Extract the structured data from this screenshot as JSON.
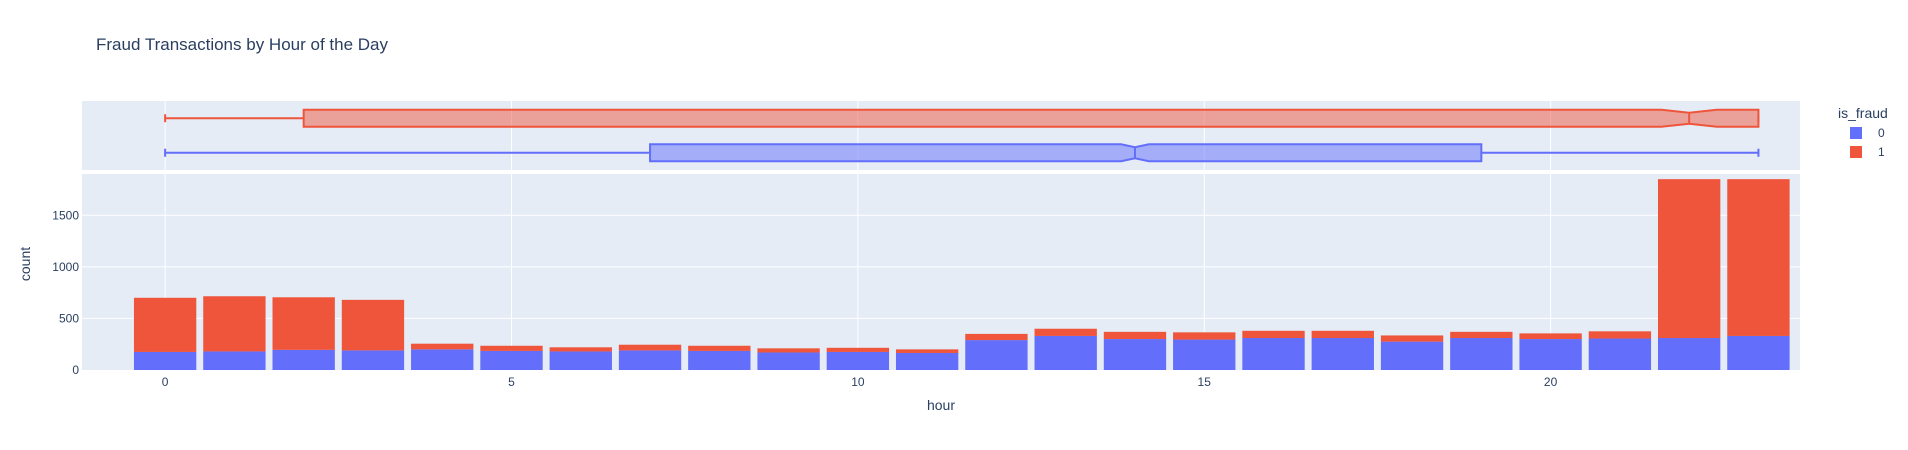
{
  "chart_data": {
    "title": "Fraud Transactions by Hour of the Day",
    "xlabel": "hour",
    "ylabel": "count",
    "type": "bar",
    "barmode": "stack",
    "x_ticks": [
      0,
      5,
      10,
      15,
      20
    ],
    "y_ticks": [
      0,
      500,
      1000,
      1500
    ],
    "xlim": [
      -1.2,
      23.6
    ],
    "ylim": [
      0,
      1900
    ],
    "legend": {
      "title": "is_fraud",
      "position": "right",
      "entries": [
        "0",
        "1"
      ]
    },
    "colors": {
      "0": "#636efa",
      "1": "#ef553b"
    },
    "categories": [
      0,
      1,
      2,
      3,
      4,
      5,
      6,
      7,
      8,
      9,
      10,
      11,
      12,
      13,
      14,
      15,
      16,
      17,
      18,
      19,
      20,
      21,
      22,
      23
    ],
    "series": [
      {
        "name": "0",
        "values": [
          175,
          180,
          195,
          190,
          200,
          185,
          180,
          190,
          185,
          170,
          175,
          165,
          290,
          330,
          300,
          295,
          310,
          310,
          275,
          310,
          300,
          305,
          310,
          330
        ]
      },
      {
        "name": "1",
        "values": [
          525,
          535,
          510,
          490,
          55,
          50,
          40,
          55,
          50,
          40,
          40,
          35,
          60,
          70,
          70,
          70,
          70,
          70,
          60,
          60,
          55,
          70,
          1540,
          1520
        ]
      }
    ],
    "marginal_box": {
      "type": "box",
      "notched": true,
      "boxes": [
        {
          "name": "1",
          "min": 0,
          "q1": 2,
          "median": 22,
          "q3": 23,
          "max": 23,
          "notch_low": 21.6,
          "notch_high": 22.4
        },
        {
          "name": "0",
          "min": 0,
          "q1": 7,
          "median": 14,
          "q3": 19,
          "max": 23,
          "notch_low": 13.8,
          "notch_high": 14.2
        }
      ]
    }
  }
}
